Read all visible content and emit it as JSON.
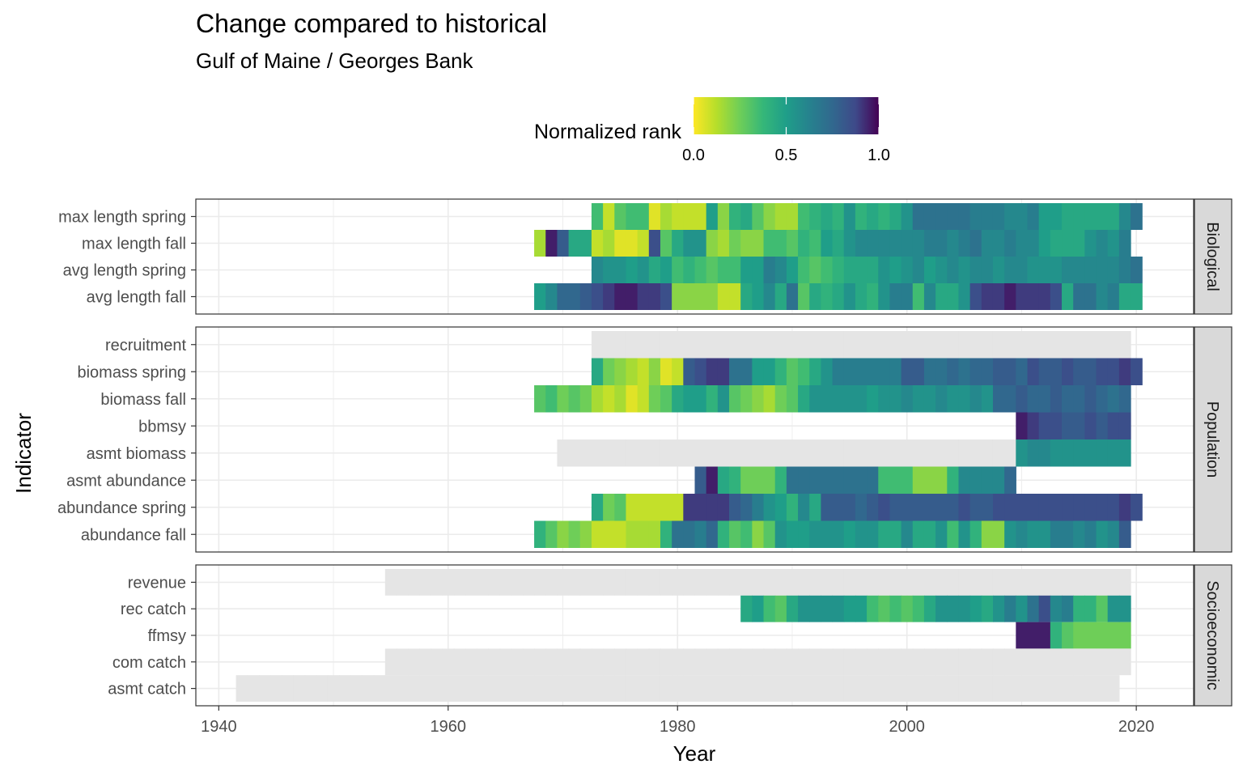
{
  "chart_data": {
    "type": "heatmap",
    "title": "Change compared to historical",
    "subtitle": "Gulf of Maine / Georges Bank",
    "xlabel": "Year",
    "ylabel": "Indicator",
    "xlim": [
      1938,
      2025
    ],
    "x_ticks": [
      1940,
      1960,
      1980,
      2000,
      2020
    ],
    "grid": true,
    "legend": {
      "title": "Normalized rank",
      "placement": "top",
      "scale": "viridis-reversed",
      "range": [
        0,
        1
      ],
      "ticks": [
        0.0,
        0.5,
        1.0
      ],
      "tick_labels": [
        "0.0",
        "0.5",
        "1.0"
      ]
    },
    "missing_color": "#e5e5e5",
    "panels": [
      {
        "name": "Biological",
        "indicators": [
          {
            "name": "max length spring",
            "start": 1973,
            "values": [
              0.35,
              0.1,
              0.3,
              0.35,
              0.35,
              0.05,
              0.15,
              0.1,
              0.1,
              0.1,
              0.5,
              0.2,
              0.4,
              0.45,
              0.3,
              0.2,
              0.15,
              0.15,
              0.35,
              0.4,
              0.45,
              0.4,
              0.55,
              0.4,
              0.45,
              0.4,
              0.45,
              0.55,
              0.7,
              0.7,
              0.7,
              0.7,
              0.7,
              0.65,
              0.65,
              0.65,
              0.6,
              0.6,
              0.65,
              0.5,
              0.5,
              0.45,
              0.45,
              0.45,
              0.45,
              0.45,
              0.6,
              0.7
            ]
          },
          {
            "name": "max length fall",
            "start": 1968,
            "values": [
              0.15,
              0.95,
              0.8,
              0.45,
              0.45,
              0.1,
              0.15,
              0.05,
              0.05,
              0.1,
              0.85,
              0.3,
              0.45,
              0.55,
              0.55,
              0.2,
              0.15,
              0.25,
              0.2,
              0.2,
              0.35,
              0.35,
              0.3,
              0.4,
              0.35,
              0.5,
              0.45,
              0.55,
              0.6,
              0.6,
              0.6,
              0.6,
              0.6,
              0.6,
              0.65,
              0.65,
              0.6,
              0.65,
              0.7,
              0.6,
              0.6,
              0.65,
              0.6,
              0.6,
              0.5,
              0.45,
              0.45,
              0.45,
              0.55,
              0.6,
              0.55,
              0.65
            ]
          },
          {
            "name": "avg length spring",
            "start": 1973,
            "values": [
              0.6,
              0.55,
              0.55,
              0.5,
              0.55,
              0.45,
              0.5,
              0.35,
              0.4,
              0.35,
              0.3,
              0.35,
              0.35,
              0.5,
              0.5,
              0.65,
              0.6,
              0.5,
              0.35,
              0.3,
              0.35,
              0.4,
              0.45,
              0.45,
              0.45,
              0.55,
              0.5,
              0.55,
              0.6,
              0.5,
              0.55,
              0.6,
              0.55,
              0.6,
              0.6,
              0.55,
              0.6,
              0.6,
              0.55,
              0.55,
              0.55,
              0.6,
              0.6,
              0.6,
              0.6,
              0.6,
              0.65,
              0.7
            ]
          },
          {
            "name": "avg length fall",
            "start": 1968,
            "values": [
              0.5,
              0.6,
              0.75,
              0.75,
              0.8,
              0.85,
              0.9,
              0.95,
              0.95,
              0.9,
              0.9,
              0.85,
              0.2,
              0.2,
              0.2,
              0.2,
              0.1,
              0.1,
              0.45,
              0.5,
              0.6,
              0.45,
              0.7,
              0.3,
              0.45,
              0.4,
              0.45,
              0.55,
              0.45,
              0.4,
              0.55,
              0.65,
              0.65,
              0.35,
              0.6,
              0.45,
              0.45,
              0.55,
              0.85,
              0.9,
              0.9,
              0.95,
              0.9,
              0.9,
              0.9,
              0.85,
              0.45,
              0.7,
              0.7,
              0.6,
              0.65,
              0.45,
              0.45
            ]
          }
        ]
      },
      {
        "name": "Population",
        "indicators": [
          {
            "name": "recruitment",
            "start": 1973,
            "values": [
              null,
              null,
              null,
              null,
              null,
              null,
              null,
              null,
              null,
              null,
              null,
              null,
              null,
              null,
              null,
              null,
              null,
              null,
              null,
              null,
              null,
              null,
              null,
              null,
              null,
              null,
              null,
              null,
              null,
              null,
              null,
              null,
              null,
              null,
              null,
              null,
              null,
              null,
              null,
              null,
              null,
              null,
              null,
              null,
              null,
              null,
              null
            ]
          },
          {
            "name": "biomass spring",
            "start": 1973,
            "values": [
              0.45,
              0.25,
              0.2,
              0.15,
              0.1,
              0.2,
              0.05,
              0.1,
              0.8,
              0.85,
              0.9,
              0.9,
              0.7,
              0.7,
              0.5,
              0.5,
              0.4,
              0.3,
              0.35,
              0.45,
              0.55,
              0.65,
              0.65,
              0.65,
              0.65,
              0.65,
              0.65,
              0.8,
              0.8,
              0.7,
              0.7,
              0.75,
              0.7,
              0.75,
              0.75,
              0.8,
              0.8,
              0.75,
              0.85,
              0.8,
              0.8,
              0.85,
              0.8,
              0.8,
              0.85,
              0.85,
              0.9,
              0.85
            ]
          },
          {
            "name": "biomass fall",
            "start": 1968,
            "values": [
              0.3,
              0.35,
              0.25,
              0.3,
              0.25,
              0.15,
              0.1,
              0.15,
              0.05,
              0.1,
              0.25,
              0.3,
              0.45,
              0.5,
              0.5,
              0.4,
              0.55,
              0.3,
              0.25,
              0.2,
              0.15,
              0.25,
              0.3,
              0.45,
              0.55,
              0.55,
              0.55,
              0.55,
              0.55,
              0.5,
              0.55,
              0.55,
              0.6,
              0.55,
              0.55,
              0.6,
              0.55,
              0.55,
              0.6,
              0.55,
              0.75,
              0.75,
              0.8,
              0.75,
              0.75,
              0.8,
              0.75,
              0.75,
              0.8,
              0.75,
              0.7,
              0.75
            ]
          },
          {
            "name": "bbmsy",
            "start": 2010,
            "values": [
              0.95,
              0.9,
              0.85,
              0.85,
              0.8,
              0.8,
              0.85,
              0.8,
              0.85,
              0.85
            ]
          },
          {
            "name": "asmt biomass",
            "start": 1970,
            "values": [
              null,
              null,
              null,
              null,
              null,
              null,
              null,
              null,
              null,
              null,
              null,
              null,
              null,
              null,
              null,
              null,
              null,
              null,
              null,
              null,
              null,
              null,
              null,
              null,
              null,
              null,
              null,
              null,
              null,
              null,
              null,
              null,
              null,
              null,
              null,
              null,
              null,
              null,
              null,
              null,
              0.55,
              0.6,
              0.6,
              0.55,
              0.55,
              0.55,
              0.55,
              0.55,
              0.55,
              0.55
            ]
          },
          {
            "name": "asmt abundance",
            "start": 1982,
            "values": [
              0.8,
              0.95,
              0.45,
              0.4,
              0.25,
              0.25,
              0.25,
              0.4,
              0.7,
              0.7,
              0.7,
              0.7,
              0.7,
              0.7,
              0.7,
              0.7,
              0.35,
              0.35,
              0.35,
              0.2,
              0.2,
              0.2,
              0.4,
              0.6,
              0.6,
              0.6,
              0.6,
              0.75
            ]
          },
          {
            "name": "abundance spring",
            "start": 1973,
            "values": [
              0.45,
              0.25,
              0.3,
              0.1,
              0.1,
              0.1,
              0.1,
              0.1,
              0.9,
              0.9,
              0.9,
              0.9,
              0.8,
              0.75,
              0.65,
              0.55,
              0.5,
              0.4,
              0.6,
              0.45,
              0.8,
              0.8,
              0.8,
              0.75,
              0.8,
              0.85,
              0.8,
              0.8,
              0.8,
              0.8,
              0.8,
              0.8,
              0.85,
              0.8,
              0.8,
              0.85,
              0.85,
              0.85,
              0.85,
              0.85,
              0.85,
              0.85,
              0.85,
              0.85,
              0.85,
              0.85,
              0.9,
              0.85
            ]
          },
          {
            "name": "abundance fall",
            "start": 1968,
            "values": [
              0.4,
              0.3,
              0.2,
              0.25,
              0.2,
              0.1,
              0.1,
              0.1,
              0.15,
              0.15,
              0.15,
              0.4,
              0.7,
              0.7,
              0.65,
              0.75,
              0.4,
              0.3,
              0.35,
              0.2,
              0.3,
              0.55,
              0.5,
              0.5,
              0.55,
              0.55,
              0.55,
              0.5,
              0.55,
              0.55,
              0.45,
              0.45,
              0.6,
              0.45,
              0.45,
              0.55,
              0.35,
              0.55,
              0.4,
              0.2,
              0.2,
              0.55,
              0.6,
              0.55,
              0.55,
              0.65,
              0.65,
              0.6,
              0.65,
              0.55,
              0.6,
              0.8
            ]
          }
        ]
      },
      {
        "name": "Socioeconomic",
        "indicators": [
          {
            "name": "revenue",
            "start": 1955,
            "values": [
              null,
              null,
              null,
              null,
              null,
              null,
              null,
              null,
              null,
              null,
              null,
              null,
              null,
              null,
              null,
              null,
              null,
              null,
              null,
              null,
              null,
              null,
              null,
              null,
              null,
              null,
              null,
              null,
              null,
              null,
              null,
              null,
              null,
              null,
              null,
              null,
              null,
              null,
              null,
              null,
              null,
              null,
              null,
              null,
              null,
              null,
              null,
              null,
              null,
              null,
              null,
              null,
              null,
              null,
              null,
              null,
              null,
              null,
              null,
              null,
              null,
              null,
              null,
              null,
              null
            ]
          },
          {
            "name": "rec catch",
            "start": 1986,
            "values": [
              0.45,
              0.5,
              0.35,
              0.3,
              0.45,
              0.55,
              0.55,
              0.55,
              0.55,
              0.5,
              0.5,
              0.35,
              0.3,
              0.35,
              0.3,
              0.35,
              0.45,
              0.55,
              0.55,
              0.55,
              0.5,
              0.45,
              0.55,
              0.65,
              0.55,
              0.7,
              0.85,
              0.6,
              0.65,
              0.4,
              0.4,
              0.3,
              0.55,
              0.55
            ]
          },
          {
            "name": "ffmsy",
            "start": 2010,
            "values": [
              0.95,
              0.95,
              0.95,
              0.4,
              0.3,
              0.25,
              0.25,
              0.25,
              0.25,
              0.25
            ]
          },
          {
            "name": "com catch",
            "start": 1955,
            "values": [
              null,
              null,
              null,
              null,
              null,
              null,
              null,
              null,
              null,
              null,
              null,
              null,
              null,
              null,
              null,
              null,
              null,
              null,
              null,
              null,
              null,
              null,
              null,
              null,
              null,
              null,
              null,
              null,
              null,
              null,
              null,
              null,
              null,
              null,
              null,
              null,
              null,
              null,
              null,
              null,
              null,
              null,
              null,
              null,
              null,
              null,
              null,
              null,
              null,
              null,
              null,
              null,
              null,
              null,
              null,
              null,
              null,
              null,
              null,
              null,
              null,
              null,
              null,
              null,
              null
            ]
          },
          {
            "name": "asmt catch",
            "start": 1942,
            "values": [
              null,
              null,
              null,
              null,
              null,
              null,
              null,
              null,
              null,
              null,
              null,
              null,
              null,
              null,
              null,
              null,
              null,
              null,
              null,
              null,
              null,
              null,
              null,
              null,
              null,
              null,
              null,
              null,
              null,
              null,
              null,
              null,
              null,
              null,
              null,
              null,
              null,
              null,
              null,
              null,
              null,
              null,
              null,
              null,
              null,
              null,
              null,
              null,
              null,
              null,
              null,
              null,
              null,
              null,
              null,
              null,
              null,
              null,
              null,
              null,
              null,
              null,
              null,
              null,
              null,
              null,
              null,
              null,
              null,
              null,
              null,
              null,
              null,
              null,
              null,
              null,
              null
            ]
          }
        ]
      }
    ]
  }
}
